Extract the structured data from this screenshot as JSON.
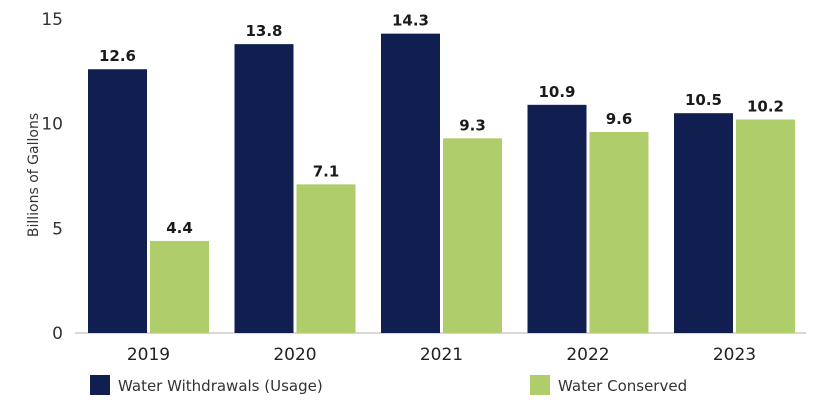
{
  "chart_data": {
    "type": "bar",
    "categories": [
      "2019",
      "2020",
      "2021",
      "2022",
      "2023"
    ],
    "series": [
      {
        "name": "Water Withdrawals (Usage)",
        "values": [
          12.6,
          13.8,
          14.3,
          10.9,
          10.5
        ],
        "color": "#111f50"
      },
      {
        "name": "Water Conserved",
        "values": [
          4.4,
          7.1,
          9.3,
          9.6,
          10.2
        ],
        "color": "#afcd6b"
      }
    ],
    "ylabel": "Billions of Gallons",
    "xlabel": "",
    "ylim": [
      0,
      15
    ],
    "yticks": [
      0,
      5,
      10,
      15
    ],
    "grid": false,
    "legend": "bottom",
    "data_labels": true
  }
}
